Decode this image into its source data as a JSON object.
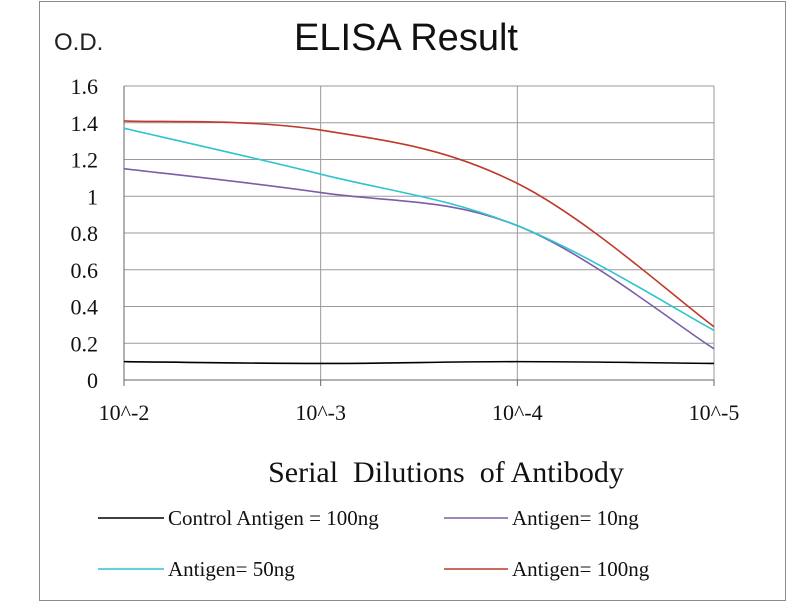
{
  "chart_data": {
    "type": "line",
    "title": "ELISA Result",
    "ylabel": "O.D.",
    "xlabel": "Serial  Dilutions  of Antibody",
    "x": [
      "10^-2",
      "10^-3",
      "10^-4",
      "10^-5"
    ],
    "y_ticks": [
      "0",
      "0.2",
      "0.4",
      "0.6",
      "0.8",
      "1",
      "1.2",
      "1.4",
      "1.6"
    ],
    "ylim": [
      0,
      1.6
    ],
    "grid": true,
    "legend_position": "bottom",
    "series": [
      {
        "name": "Control Antigen = 100ng",
        "color": "#000000",
        "values": [
          0.1,
          0.09,
          0.1,
          0.09
        ]
      },
      {
        "name": "Antigen= 10ng",
        "color": "#7b5ea7",
        "values": [
          1.15,
          1.02,
          0.84,
          0.17
        ]
      },
      {
        "name": "Antigen= 50ng",
        "color": "#2ec4d0",
        "values": [
          1.37,
          1.12,
          0.84,
          0.27
        ]
      },
      {
        "name": "Antigen= 100ng",
        "color": "#c0392b",
        "values": [
          1.41,
          1.36,
          1.07,
          0.29
        ]
      }
    ]
  }
}
